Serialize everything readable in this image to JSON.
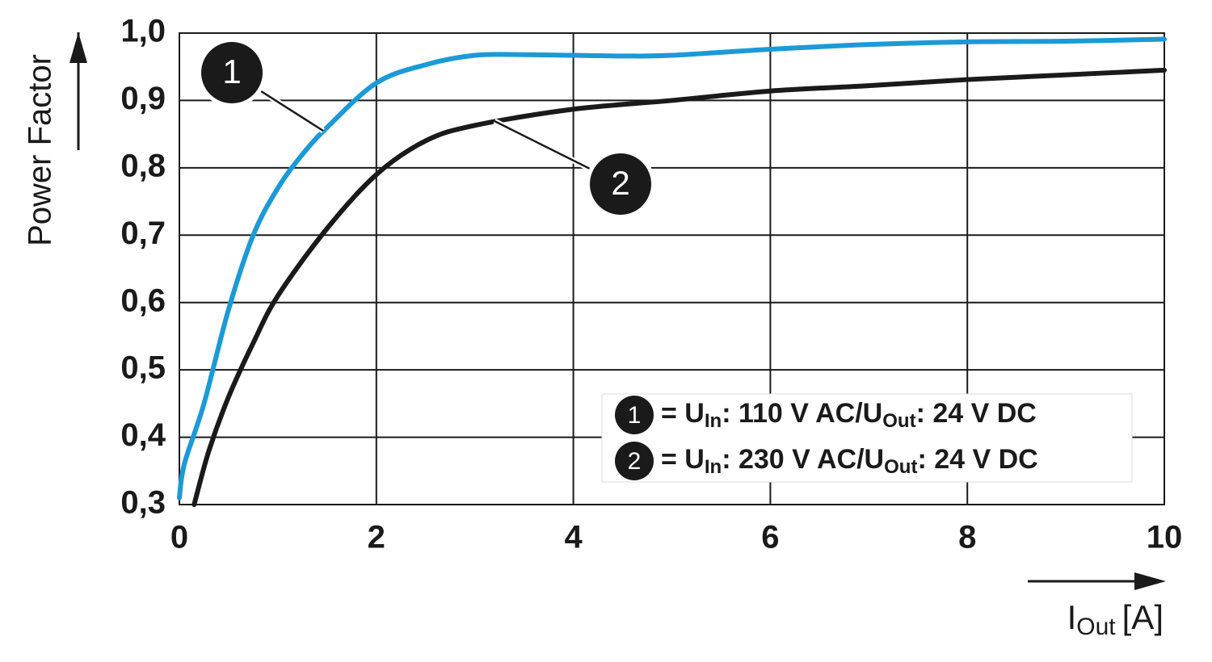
{
  "chart_data": {
    "type": "line",
    "ylabel": "Power Factor",
    "xlabel": "I",
    "xlabel_sub": "Out",
    "xlabel_unit": "[A]",
    "xlim": [
      0,
      10
    ],
    "ylim": [
      0.3,
      1.0
    ],
    "xticks": [
      0,
      2,
      4,
      6,
      8,
      10
    ],
    "yticks": [
      {
        "value": 0.3,
        "label": "0,3"
      },
      {
        "value": 0.4,
        "label": "0,4"
      },
      {
        "value": 0.5,
        "label": "0,5"
      },
      {
        "value": 0.6,
        "label": "0,6"
      },
      {
        "value": 0.7,
        "label": "0,7"
      },
      {
        "value": 0.8,
        "label": "0,8"
      },
      {
        "value": 0.9,
        "label": "0,9"
      },
      {
        "value": 1.0,
        "label": "1,0"
      }
    ],
    "grid": true,
    "series": [
      {
        "label": "1",
        "name": [
          "= U",
          "In",
          ": 110 V AC/U",
          "Out",
          ": 24 V DC"
        ],
        "color": "#1b9ad6",
        "x": [
          0,
          0.05,
          0.25,
          0.5,
          0.75,
          1.0,
          1.25,
          1.5,
          2.0,
          2.5,
          3.0,
          3.5,
          4.0,
          4.5,
          5.0,
          6.0,
          7.0,
          8.0,
          9.0,
          10.0
        ],
        "values": [
          0.31,
          0.36,
          0.45,
          0.59,
          0.7,
          0.77,
          0.82,
          0.86,
          0.926,
          0.953,
          0.967,
          0.968,
          0.967,
          0.966,
          0.967,
          0.976,
          0.983,
          0.987,
          0.988,
          0.991
        ]
      },
      {
        "label": "2",
        "name": [
          "= U",
          "In",
          ": 230 V AC/U",
          "Out",
          ": 24 V DC"
        ],
        "color": "#1a1a1a",
        "x": [
          0.15,
          0.3,
          0.5,
          0.75,
          1.0,
          1.5,
          2.0,
          2.5,
          3.0,
          4.0,
          5.0,
          6.0,
          7.0,
          8.0,
          9.0,
          10.0
        ],
        "values": [
          0.3,
          0.38,
          0.46,
          0.54,
          0.61,
          0.71,
          0.79,
          0.84,
          0.863,
          0.887,
          0.9,
          0.914,
          0.922,
          0.931,
          0.938,
          0.945
        ]
      }
    ]
  }
}
